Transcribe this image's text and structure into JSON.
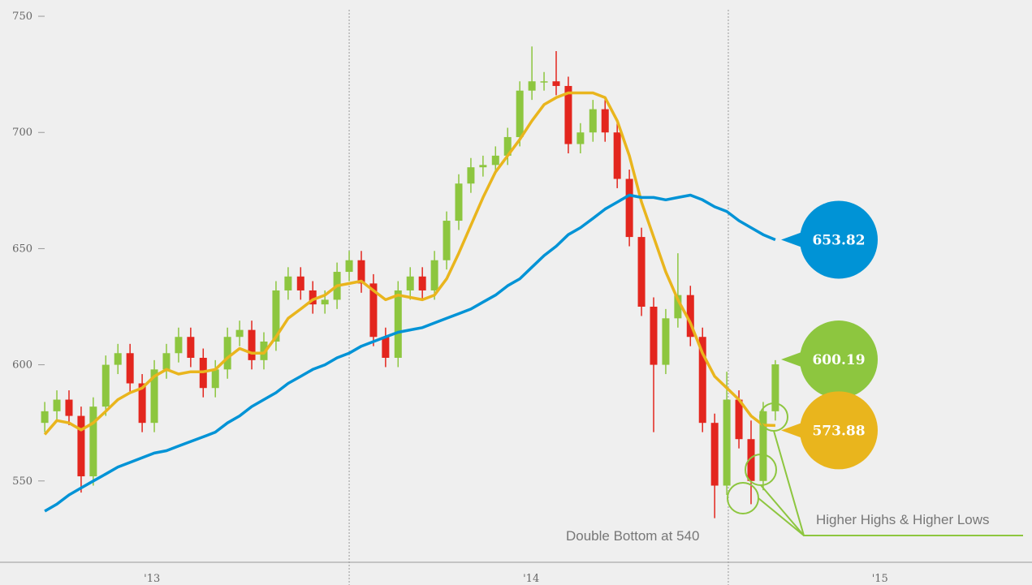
{
  "chart_data": {
    "type": "candlestick",
    "x": [
      2013.197,
      2013.229,
      2013.261,
      2013.293,
      2013.325,
      2013.358,
      2013.39,
      2013.422,
      2013.454,
      2013.486,
      2013.518,
      2013.55,
      2013.582,
      2013.615,
      2013.647,
      2013.679,
      2013.711,
      2013.743,
      2013.775,
      2013.807,
      2013.839,
      2013.872,
      2013.904,
      2013.936,
      2013.968,
      2014.0,
      2014.032,
      2014.064,
      2014.096,
      2014.129,
      2014.161,
      2014.193,
      2014.225,
      2014.257,
      2014.289,
      2014.321,
      2014.353,
      2014.386,
      2014.418,
      2014.45,
      2014.482,
      2014.514,
      2014.546,
      2014.578,
      2014.61,
      2014.643,
      2014.675,
      2014.707,
      2014.739,
      2014.771,
      2014.803,
      2014.835,
      2014.867,
      2014.9,
      2014.932,
      2014.964,
      2014.996,
      2015.028,
      2015.06,
      2015.092,
      2015.124
    ],
    "open": [
      575,
      580,
      585,
      578,
      552,
      582,
      600,
      605,
      592,
      575,
      598,
      605,
      612,
      603,
      590,
      598,
      612,
      615,
      602,
      610,
      632,
      638,
      632,
      626,
      628,
      640,
      645,
      635,
      612,
      603,
      632,
      638,
      632,
      645,
      662,
      678,
      685,
      686,
      690,
      698,
      718,
      722,
      722,
      720,
      695,
      700,
      710,
      700,
      680,
      655,
      625,
      600,
      620,
      630,
      612,
      575,
      548,
      585,
      568,
      550,
      580
    ],
    "high": [
      584,
      589,
      589,
      582,
      586,
      604,
      609,
      609,
      596,
      602,
      609,
      616,
      616,
      607,
      602,
      616,
      619,
      619,
      614,
      636,
      642,
      642,
      636,
      632,
      644,
      649,
      649,
      639,
      616,
      636,
      642,
      642,
      649,
      666,
      682,
      689,
      690,
      694,
      702,
      722,
      737,
      726,
      735,
      724,
      704,
      714,
      714,
      704,
      684,
      659,
      629,
      624,
      648,
      634,
      616,
      579,
      597,
      589,
      576,
      584,
      602
    ],
    "low": [
      571,
      576,
      574,
      545,
      548,
      578,
      596,
      588,
      571,
      571,
      594,
      601,
      599,
      586,
      586,
      594,
      608,
      598,
      598,
      606,
      628,
      628,
      622,
      622,
      624,
      636,
      631,
      608,
      599,
      599,
      628,
      628,
      628,
      641,
      658,
      674,
      681,
      682,
      686,
      694,
      714,
      718,
      716,
      691,
      691,
      696,
      696,
      676,
      651,
      621,
      571,
      596,
      616,
      608,
      571,
      534,
      544,
      564,
      540,
      546,
      576
    ],
    "close": [
      580,
      585,
      578,
      552,
      582,
      600,
      605,
      592,
      575,
      598,
      605,
      612,
      603,
      590,
      598,
      612,
      615,
      602,
      610,
      632,
      638,
      632,
      626,
      628,
      640,
      645,
      635,
      612,
      603,
      632,
      638,
      632,
      645,
      662,
      678,
      685,
      686,
      690,
      698,
      718,
      722,
      722,
      720,
      695,
      700,
      710,
      700,
      680,
      655,
      625,
      600,
      620,
      630,
      612,
      575,
      548,
      585,
      568,
      550,
      580,
      600.19
    ],
    "up_color": "#8dc63f",
    "down_color": "#e3261e",
    "series": [
      {
        "color": "#e9b51d",
        "values": [
          570,
          576,
          575,
          572,
          575,
          580,
          585,
          588,
          590,
          595,
          598,
          596,
          597,
          597,
          598,
          603,
          607,
          605,
          605,
          612,
          620,
          624,
          628,
          630,
          634,
          635,
          636,
          632,
          628,
          630,
          629,
          628,
          630,
          637,
          648,
          660,
          672,
          683,
          690,
          697,
          705,
          712,
          715,
          717,
          717,
          717,
          715,
          705,
          690,
          670,
          655,
          640,
          628,
          618,
          605,
          595,
          590,
          585,
          578,
          574,
          573.88
        ]
      },
      {
        "color": "#0093d6",
        "values": [
          537,
          540,
          544,
          547,
          550,
          553,
          556,
          558,
          560,
          562,
          563,
          565,
          567,
          569,
          571,
          575,
          578,
          582,
          585,
          588,
          592,
          595,
          598,
          600,
          603,
          605,
          608,
          610,
          612,
          614,
          615,
          616,
          618,
          620,
          622,
          624,
          627,
          630,
          634,
          637,
          642,
          647,
          651,
          656,
          659,
          663,
          667,
          670,
          673,
          672,
          672,
          671,
          672,
          673,
          671,
          668,
          666,
          662,
          659,
          656,
          653.82
        ]
      }
    ],
    "xlim": [
      2013.079,
      2015.801
    ],
    "xticks": [
      2014,
      2015
    ],
    "xlabels": [
      {
        "value": 2013.48,
        "label": "'13"
      },
      {
        "value": 2014.48,
        "label": "'14"
      },
      {
        "value": 2015.4,
        "label": "'15"
      }
    ],
    "ylim": [
      515,
      757
    ],
    "yticks": [
      550,
      600,
      650,
      700,
      750
    ],
    "annotations": [
      "Double Bottom at 540",
      "Higher Highs & Higher Lows"
    ]
  }
}
